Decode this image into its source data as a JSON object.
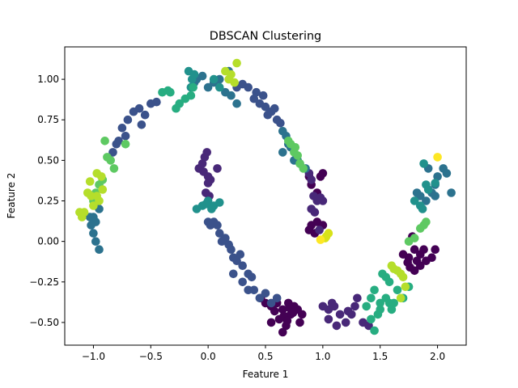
{
  "chart_data": {
    "type": "scatter",
    "title": "DBSCAN Clustering",
    "xlabel": "Feature 1",
    "ylabel": "Feature 2",
    "xlim": [
      -1.25,
      2.25
    ],
    "ylim": [
      -0.64,
      1.2
    ],
    "xticks": [
      -1.0,
      -0.5,
      0.0,
      0.5,
      1.0,
      1.5,
      2.0
    ],
    "xtick_labels": [
      "−1.0",
      "−0.5",
      "0.0",
      "0.5",
      "1.0",
      "1.5",
      "2.0"
    ],
    "yticks": [
      -0.5,
      -0.25,
      0.0,
      0.25,
      0.5,
      0.75,
      1.0
    ],
    "ytick_labels": [
      "−0.50",
      "−0.25",
      "0.00",
      "0.25",
      "0.50",
      "0.75",
      "1.00"
    ],
    "grid": false,
    "colormap": [
      "#440154",
      "#3b528b",
      "#21918c",
      "#5ec962",
      "#b5de2b",
      "#fde725"
    ],
    "series": [
      {
        "color": "#440154",
        "points": [
          [
            0.46,
            -0.35
          ],
          [
            0.5,
            -0.38
          ],
          [
            0.55,
            -0.4
          ],
          [
            0.6,
            -0.38
          ],
          [
            0.65,
            -0.42
          ],
          [
            0.7,
            -0.38
          ],
          [
            0.72,
            -0.45
          ],
          [
            0.75,
            -0.4
          ],
          [
            0.62,
            -0.48
          ],
          [
            0.68,
            -0.52
          ],
          [
            0.55,
            -0.5
          ],
          [
            0.65,
            -0.56
          ],
          [
            0.78,
            -0.42
          ],
          [
            0.82,
            -0.45
          ],
          [
            0.58,
            -0.43
          ],
          [
            0.71,
            -0.41
          ],
          [
            0.66,
            -0.46
          ],
          [
            0.8,
            -0.5
          ],
          [
            0.74,
            -0.44
          ],
          [
            0.69,
            -0.49
          ],
          [
            0.88,
            0.4
          ],
          [
            0.9,
            0.35
          ],
          [
            0.95,
            0.3
          ],
          [
            1.0,
            0.42
          ],
          [
            0.98,
            0.4
          ],
          [
            0.9,
            0.1
          ],
          [
            0.95,
            0.12
          ],
          [
            0.88,
            0.07
          ],
          [
            1.0,
            0.1
          ],
          [
            0.93,
            0.05
          ],
          [
            1.78,
            0.03
          ],
          [
            1.8,
            -0.05
          ],
          [
            1.75,
            -0.1
          ],
          [
            1.82,
            -0.12
          ],
          [
            1.85,
            -0.08
          ],
          [
            1.9,
            -0.12
          ],
          [
            1.88,
            -0.05
          ],
          [
            1.95,
            -0.1
          ],
          [
            1.98,
            -0.05
          ],
          [
            1.76,
            -0.16
          ],
          [
            1.8,
            -0.18
          ],
          [
            1.85,
            -0.15
          ],
          [
            1.7,
            -0.08
          ],
          [
            1.74,
            -0.13
          ]
        ]
      },
      {
        "color": "#482878",
        "points": [
          [
            -0.08,
            0.45
          ],
          [
            -0.05,
            0.48
          ],
          [
            -0.03,
            0.52
          ],
          [
            -0.01,
            0.55
          ],
          [
            -0.04,
            0.43
          ],
          [
            0.0,
            0.4
          ],
          [
            0.02,
            0.38
          ],
          [
            0.0,
            0.36
          ],
          [
            -0.02,
            0.3
          ],
          [
            0.01,
            0.28
          ],
          [
            0.08,
            0.45
          ],
          [
            0.88,
            0.42
          ],
          [
            0.9,
            0.38
          ],
          [
            0.92,
            0.28
          ],
          [
            0.95,
            0.25
          ],
          [
            0.9,
            0.2
          ],
          [
            0.93,
            0.18
          ],
          [
            1.0,
            0.25
          ],
          [
            0.98,
            0.27
          ],
          [
            0.97,
            0.07
          ],
          [
            1.0,
            -0.4
          ],
          [
            1.05,
            -0.42
          ],
          [
            1.1,
            -0.4
          ],
          [
            1.15,
            -0.45
          ],
          [
            1.2,
            -0.5
          ],
          [
            1.25,
            -0.45
          ],
          [
            1.28,
            -0.4
          ],
          [
            1.3,
            -0.35
          ],
          [
            1.05,
            -0.48
          ],
          [
            1.12,
            -0.52
          ],
          [
            1.35,
            -0.5
          ],
          [
            1.4,
            -0.52
          ],
          [
            1.22,
            -0.43
          ],
          [
            1.08,
            -0.38
          ]
        ]
      },
      {
        "color": "#3b528b",
        "points": [
          [
            -0.75,
            0.7
          ],
          [
            -0.7,
            0.75
          ],
          [
            -0.65,
            0.8
          ],
          [
            -0.6,
            0.82
          ],
          [
            -0.55,
            0.78
          ],
          [
            -0.5,
            0.85
          ],
          [
            -0.45,
            0.86
          ],
          [
            -0.72,
            0.65
          ],
          [
            -0.78,
            0.62
          ],
          [
            -0.8,
            0.6
          ],
          [
            -0.83,
            0.55
          ],
          [
            -0.58,
            0.72
          ],
          [
            0.25,
            0.95
          ],
          [
            0.3,
            0.97
          ],
          [
            0.35,
            0.95
          ],
          [
            0.4,
            0.88
          ],
          [
            0.45,
            0.85
          ],
          [
            0.5,
            0.83
          ],
          [
            0.52,
            0.78
          ],
          [
            0.55,
            0.8
          ],
          [
            0.58,
            0.82
          ],
          [
            0.6,
            0.75
          ],
          [
            0.63,
            0.73
          ],
          [
            0.48,
            0.9
          ],
          [
            0.42,
            0.92
          ],
          [
            0.0,
            0.12
          ],
          [
            0.02,
            0.1
          ],
          [
            0.05,
            0.12
          ],
          [
            0.08,
            0.1
          ],
          [
            0.1,
            0.05
          ],
          [
            0.15,
            0.02
          ],
          [
            0.18,
            -0.02
          ],
          [
            0.2,
            -0.05
          ],
          [
            0.22,
            -0.1
          ],
          [
            0.25,
            -0.12
          ],
          [
            0.3,
            -0.15
          ],
          [
            0.35,
            -0.2
          ],
          [
            0.38,
            -0.22
          ],
          [
            0.3,
            -0.25
          ],
          [
            0.35,
            -0.3
          ],
          [
            0.4,
            -0.3
          ],
          [
            0.45,
            -0.35
          ],
          [
            0.5,
            -0.32
          ],
          [
            0.55,
            -0.38
          ],
          [
            0.6,
            -0.35
          ],
          [
            0.22,
            -0.2
          ],
          [
            0.28,
            -0.08
          ],
          [
            0.12,
            0.0
          ]
        ]
      },
      {
        "color": "#2c728e",
        "points": [
          [
            -1.0,
            0.15
          ],
          [
            -0.98,
            0.12
          ],
          [
            -1.02,
            0.1
          ],
          [
            -0.95,
            0.2
          ],
          [
            -1.0,
            0.05
          ],
          [
            -0.95,
            -0.05
          ],
          [
            -0.98,
            0.0
          ],
          [
            -1.03,
            0.15
          ],
          [
            -0.12,
            0.98
          ],
          [
            -0.1,
            1.0
          ],
          [
            -0.05,
            1.02
          ],
          [
            0.0,
            0.95
          ],
          [
            0.05,
            0.98
          ],
          [
            0.1,
            1.0
          ],
          [
            0.15,
            0.92
          ],
          [
            0.2,
            0.9
          ],
          [
            0.25,
            0.85
          ],
          [
            0.18,
            1.05
          ],
          [
            0.65,
            0.68
          ],
          [
            0.68,
            0.65
          ],
          [
            0.7,
            0.6
          ],
          [
            0.65,
            0.55
          ],
          [
            0.72,
            0.58
          ],
          [
            0.75,
            0.5
          ],
          [
            0.78,
            0.5
          ],
          [
            0.8,
            0.48
          ],
          [
            0.85,
            0.45
          ],
          [
            1.82,
            0.3
          ],
          [
            1.85,
            0.28
          ],
          [
            1.9,
            0.25
          ],
          [
            1.95,
            0.3
          ],
          [
            1.98,
            0.35
          ],
          [
            2.0,
            0.4
          ],
          [
            2.05,
            0.45
          ],
          [
            2.08,
            0.42
          ],
          [
            2.12,
            0.3
          ],
          [
            1.92,
            0.45
          ],
          [
            1.98,
            0.28
          ]
        ]
      },
      {
        "color": "#21918c",
        "points": [
          [
            -0.1,
            0.2
          ],
          [
            -0.05,
            0.22
          ],
          [
            0.0,
            0.25
          ],
          [
            0.05,
            0.22
          ],
          [
            0.1,
            0.24
          ],
          [
            -0.02,
            0.23
          ],
          [
            0.03,
            0.2
          ],
          [
            1.88,
            0.48
          ],
          [
            1.9,
            0.35
          ],
          [
            1.85,
            0.22
          ],
          [
            1.87,
            0.2
          ],
          [
            1.8,
            0.25
          ],
          [
            1.92,
            0.32
          ],
          [
            1.98,
            0.36
          ],
          [
            -0.17,
            1.05
          ],
          [
            -0.14,
            1.0
          ],
          [
            -0.15,
            0.95
          ],
          [
            -0.12,
            1.03
          ],
          [
            0.05,
            1.0
          ],
          [
            0.1,
            0.95
          ]
        ]
      },
      {
        "color": "#27ad81",
        "points": [
          [
            -0.4,
            0.92
          ],
          [
            -0.35,
            0.93
          ],
          [
            -0.33,
            0.92
          ],
          [
            -0.25,
            0.85
          ],
          [
            -0.15,
            0.9
          ],
          [
            -0.13,
            0.95
          ],
          [
            -0.2,
            0.88
          ],
          [
            -0.28,
            0.82
          ],
          [
            1.38,
            -0.4
          ],
          [
            1.42,
            -0.35
          ],
          [
            1.45,
            -0.3
          ],
          [
            1.5,
            -0.38
          ],
          [
            1.55,
            -0.35
          ],
          [
            1.58,
            -0.38
          ],
          [
            1.6,
            -0.42
          ],
          [
            1.62,
            -0.38
          ],
          [
            1.65,
            -0.3
          ],
          [
            1.55,
            -0.22
          ],
          [
            1.58,
            -0.25
          ],
          [
            1.52,
            -0.2
          ],
          [
            1.42,
            -0.48
          ],
          [
            1.48,
            -0.45
          ],
          [
            1.5,
            -0.42
          ],
          [
            1.45,
            -0.55
          ],
          [
            1.7,
            -0.35
          ],
          [
            1.75,
            -0.28
          ]
        ]
      },
      {
        "color": "#5ec962",
        "points": [
          [
            -0.85,
            0.5
          ],
          [
            -0.88,
            0.52
          ],
          [
            -0.82,
            0.45
          ],
          [
            -0.9,
            0.62
          ],
          [
            -0.92,
            0.38
          ],
          [
            -0.95,
            0.35
          ],
          [
            -0.98,
            0.3
          ],
          [
            -1.0,
            0.25
          ],
          [
            -0.72,
            0.6
          ],
          [
            0.7,
            0.62
          ],
          [
            0.72,
            0.6
          ],
          [
            0.75,
            0.55
          ],
          [
            0.78,
            0.53
          ],
          [
            0.8,
            0.48
          ],
          [
            0.83,
            0.45
          ],
          [
            0.76,
            0.58
          ],
          [
            1.75,
            0.0
          ],
          [
            1.8,
            0.02
          ],
          [
            1.85,
            0.08
          ],
          [
            1.88,
            0.1
          ],
          [
            1.9,
            0.12
          ]
        ]
      },
      {
        "color": "#b5de2b",
        "points": [
          [
            -1.1,
            0.15
          ],
          [
            -1.12,
            0.18
          ],
          [
            -1.08,
            0.18
          ],
          [
            -1.05,
            0.3
          ],
          [
            -1.02,
            0.28
          ],
          [
            -1.0,
            0.22
          ],
          [
            -0.97,
            0.28
          ],
          [
            -0.92,
            0.32
          ],
          [
            -0.95,
            0.25
          ],
          [
            -1.03,
            0.37
          ],
          [
            -0.97,
            0.42
          ],
          [
            -0.93,
            0.4
          ],
          [
            0.15,
            1.05
          ],
          [
            0.18,
            1.0
          ],
          [
            0.2,
            1.03
          ],
          [
            0.23,
            0.98
          ],
          [
            0.25,
            1.1
          ],
          [
            1.6,
            -0.15
          ],
          [
            1.62,
            -0.17
          ],
          [
            1.65,
            -0.18
          ],
          [
            1.68,
            -0.2
          ],
          [
            1.7,
            -0.22
          ],
          [
            1.72,
            -0.28
          ],
          [
            1.68,
            -0.35
          ]
        ]
      },
      {
        "color": "#d8e219",
        "points": [
          [
            1.03,
            0.03
          ],
          [
            1.05,
            0.05
          ],
          [
            1.02,
            0.02
          ]
        ]
      },
      {
        "color": "#fde725",
        "points": [
          [
            0.98,
            0.01
          ],
          [
            2.0,
            0.52
          ]
        ]
      }
    ]
  }
}
